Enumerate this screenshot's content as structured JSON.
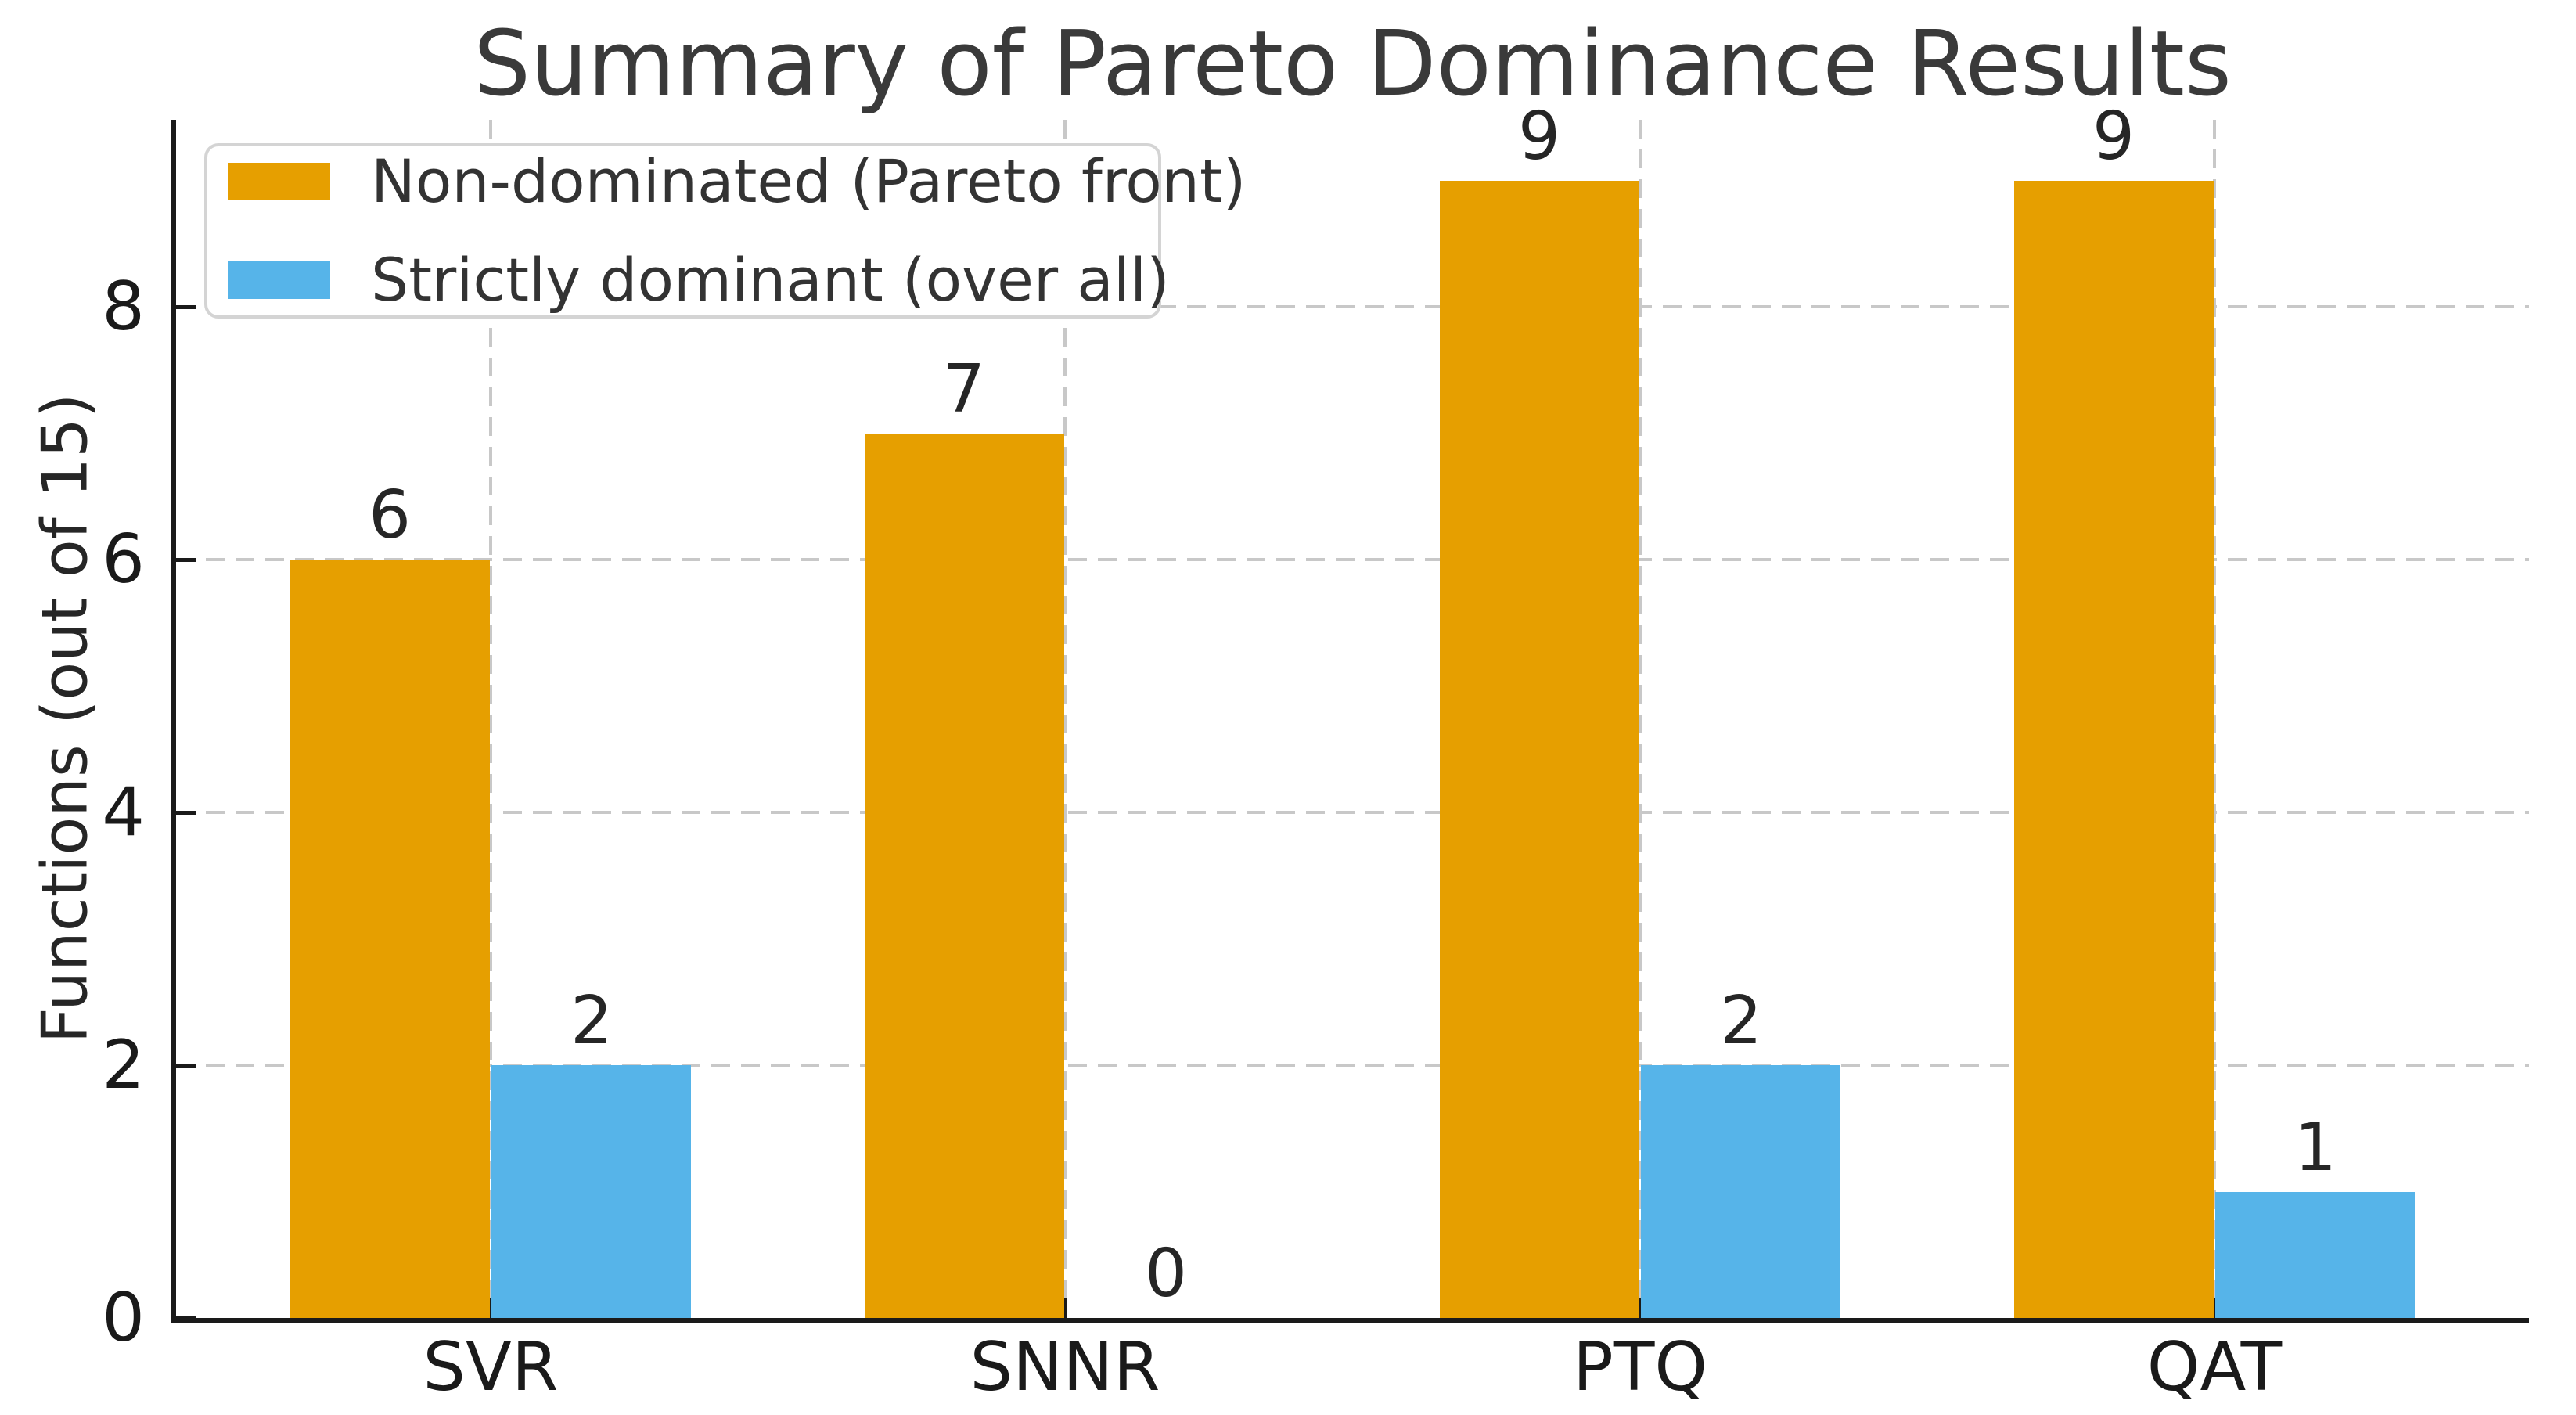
{
  "chart_data": {
    "type": "bar",
    "title": "Summary of Pareto Dominance Results",
    "xlabel": "",
    "ylabel": "Functions (out of 15)",
    "categories": [
      "SVR",
      "SNNR",
      "PTQ",
      "QAT"
    ],
    "series": [
      {
        "name": "Non-dominated (Pareto front)",
        "color": "#E69F00",
        "values": [
          6,
          7,
          9,
          9
        ]
      },
      {
        "name": "Strictly dominant (over all)",
        "color": "#56B4E9",
        "values": [
          2,
          0,
          2,
          1
        ]
      }
    ],
    "bar_value_labels": [
      [
        "6",
        "7",
        "9",
        "9"
      ],
      [
        "2",
        "0",
        "2",
        "1"
      ]
    ],
    "yticks": [
      "0",
      "2",
      "4",
      "6",
      "8"
    ],
    "ylim": [
      0,
      9.48
    ],
    "grid": "dashed",
    "legend_position": "upper left"
  },
  "colors": {
    "orange_series": "#E69F00",
    "blue_series": "#56B4E9",
    "grid": "#c8c8c8",
    "axis": "#1a1a1a",
    "title_text": "#3a3a3a",
    "tick_text": "#1a1a1a",
    "legend_border": "#d4d4d4",
    "background": "#ffffff"
  }
}
